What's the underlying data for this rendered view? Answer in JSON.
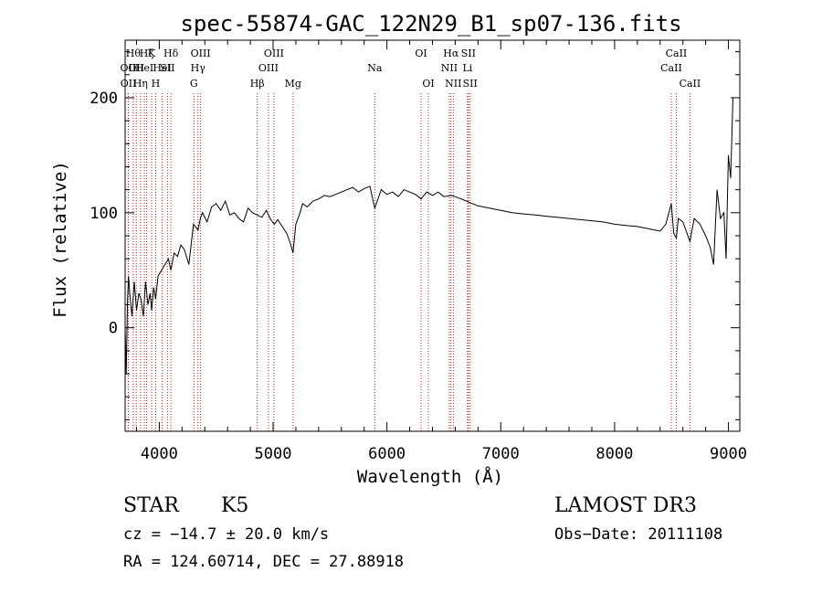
{
  "chart_data": {
    "type": "line",
    "title": "spec-55874-GAC_122N29_B1_sp07-136.fits",
    "xlabel": "Wavelength (Å)",
    "ylabel": "Flux (relative)",
    "xlim": [
      3700,
      9100
    ],
    "ylim": [
      -90,
      250
    ],
    "xticks": [
      4000,
      5000,
      6000,
      7000,
      8000,
      9000
    ],
    "yticks": [
      0,
      100,
      200
    ],
    "grid": false,
    "legend": "none",
    "line_color": "#000000",
    "marker_color": "#aa2222",
    "series": [
      {
        "x": [
          3700,
          3710,
          3720,
          3730,
          3740,
          3760,
          3780,
          3800,
          3820,
          3840,
          3860,
          3880,
          3900,
          3920,
          3933,
          3950,
          3968,
          3990,
          4020,
          4050,
          4080,
          4102,
          4130,
          4160,
          4190,
          4220,
          4260,
          4300,
          4340,
          4360,
          4380,
          4420,
          4460,
          4500,
          4540,
          4580,
          4620,
          4660,
          4700,
          4740,
          4780,
          4820,
          4861,
          4900,
          4940,
          4980,
          5010,
          5040,
          5080,
          5120,
          5150,
          5175,
          5200,
          5230,
          5260,
          5300,
          5350,
          5400,
          5450,
          5500,
          5550,
          5600,
          5650,
          5700,
          5750,
          5800,
          5850,
          5893,
          5950,
          6000,
          6050,
          6100,
          6150,
          6200,
          6250,
          6300,
          6350,
          6400,
          6450,
          6500,
          6563,
          6600,
          6650,
          6700,
          6750,
          6800,
          6900,
          7000,
          7100,
          7200,
          7300,
          7400,
          7500,
          7600,
          7700,
          7800,
          7900,
          8000,
          8100,
          8200,
          8300,
          8400,
          8450,
          8498,
          8520,
          8542,
          8560,
          8600,
          8662,
          8700,
          8750,
          8800,
          8840,
          8870,
          8900,
          8930,
          8960,
          8980,
          9000,
          9020,
          9040
        ],
        "values": [
          0,
          -40,
          20,
          45,
          30,
          10,
          40,
          15,
          30,
          25,
          10,
          40,
          20,
          30,
          15,
          35,
          25,
          45,
          50,
          55,
          60,
          50,
          65,
          62,
          72,
          68,
          55,
          90,
          85,
          95,
          100,
          92,
          105,
          108,
          102,
          110,
          98,
          100,
          95,
          92,
          104,
          100,
          98,
          96,
          102,
          94,
          90,
          94,
          88,
          82,
          74,
          65,
          90,
          98,
          108,
          105,
          110,
          112,
          115,
          114,
          116,
          118,
          120,
          122,
          118,
          121,
          123,
          104,
          120,
          116,
          118,
          114,
          120,
          118,
          116,
          112,
          118,
          115,
          118,
          114,
          115,
          114,
          112,
          110,
          108,
          106,
          104,
          102,
          100,
          99,
          98,
          97,
          96,
          95,
          94,
          93,
          92,
          90,
          89,
          88,
          86,
          84,
          90,
          108,
          82,
          78,
          95,
          92,
          75,
          95,
          90,
          80,
          70,
          55,
          120,
          95,
          100,
          60,
          150,
          130,
          200
        ]
      }
    ],
    "lines": [
      {
        "x": 3727,
        "label": "OII",
        "row": 2
      },
      {
        "x": 3729,
        "label": "OII",
        "row": 3
      },
      {
        "x": 3771,
        "label": "Hθ",
        "row": 1
      },
      {
        "x": 3798,
        "label": "OII",
        "row": 2
      },
      {
        "x": 3835,
        "label": "Hη",
        "row": 3
      },
      {
        "x": 3869,
        "label": "HeI",
        "row": 2
      },
      {
        "x": 3889,
        "label": "Hζ",
        "row": 1
      },
      {
        "x": 3933,
        "label": "K",
        "row": 1
      },
      {
        "x": 3968,
        "label": "H",
        "row": 3
      },
      {
        "x": 4026,
        "label": "HeI",
        "row": 2
      },
      {
        "x": 4072,
        "label": "SII",
        "row": 2
      },
      {
        "x": 4102,
        "label": "Hδ",
        "row": 1
      },
      {
        "x": 4304,
        "label": "G",
        "row": 3
      },
      {
        "x": 4340,
        "label": "Hγ",
        "row": 2
      },
      {
        "x": 4363,
        "label": "OIII",
        "row": 1
      },
      {
        "x": 4861,
        "label": "Hβ",
        "row": 3
      },
      {
        "x": 4959,
        "label": "OIII",
        "row": 2
      },
      {
        "x": 5007,
        "label": "OIII",
        "row": 1
      },
      {
        "x": 5175,
        "label": "Mg",
        "row": 3
      },
      {
        "x": 5893,
        "label": "Na",
        "row": 2
      },
      {
        "x": 6300,
        "label": "OI",
        "row": 1
      },
      {
        "x": 6364,
        "label": "OI",
        "row": 3
      },
      {
        "x": 6548,
        "label": "NII",
        "row": 2
      },
      {
        "x": 6563,
        "label": "Hα",
        "row": 1
      },
      {
        "x": 6583,
        "label": "NII",
        "row": 3
      },
      {
        "x": 6708,
        "label": "Li",
        "row": 2
      },
      {
        "x": 6716,
        "label": "SII",
        "row": 1
      },
      {
        "x": 6731,
        "label": "SII",
        "row": 3
      },
      {
        "x": 8498,
        "label": "CaII",
        "row": 2
      },
      {
        "x": 8542,
        "label": "CaII",
        "row": 1
      },
      {
        "x": 8662,
        "label": "CaII",
        "row": 3
      }
    ]
  },
  "info": {
    "object_class": "STAR",
    "subclass": "K5",
    "survey": "LAMOST DR3",
    "redshift": "cz = −14.7 ± 20.0 km/s",
    "obs_date": "Obs−Date: 20111108",
    "coords": "RA = 124.60714, DEC =  27.88918"
  }
}
